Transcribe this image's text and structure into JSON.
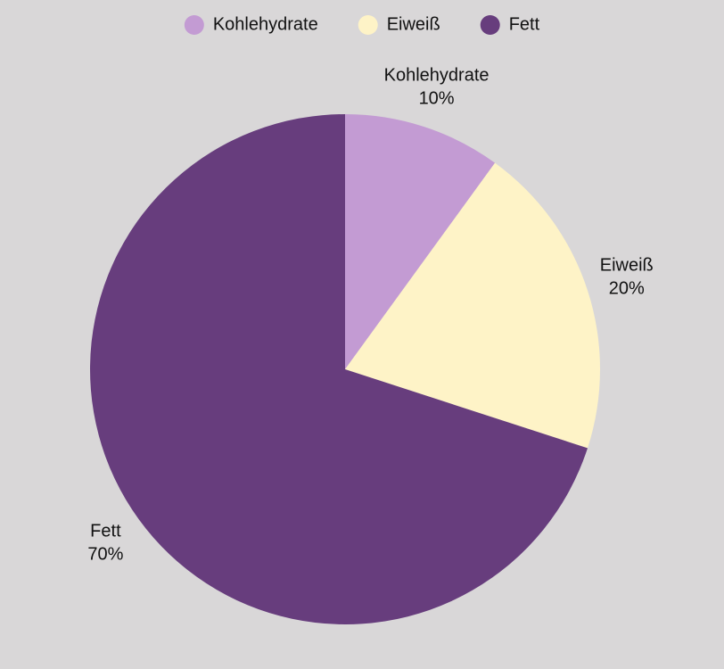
{
  "chart_data": {
    "type": "pie",
    "categories": [
      "Kohlehydrate",
      "Eiweiß",
      "Fett"
    ],
    "values": [
      10,
      20,
      70
    ],
    "value_labels": [
      "10%",
      "20%",
      "70%"
    ],
    "colors": [
      "#c39bd3",
      "#fef3c7",
      "#673d7d"
    ],
    "legend": "top"
  }
}
